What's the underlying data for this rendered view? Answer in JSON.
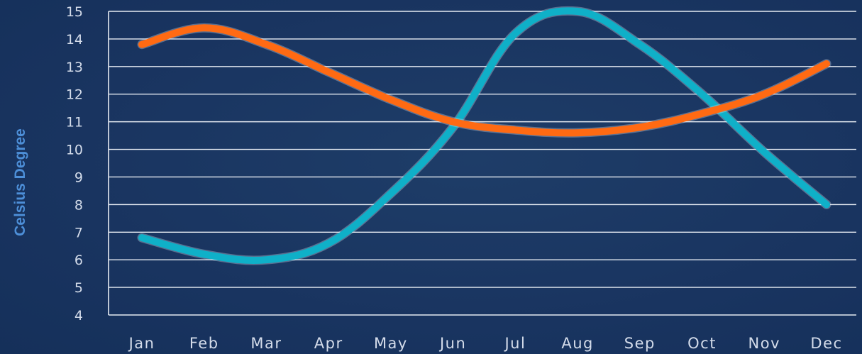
{
  "chart_data": {
    "type": "line",
    "ylabel": "Celsius Degree",
    "xlabel": "",
    "title": "",
    "categories": [
      "Jan",
      "Feb",
      "Mar",
      "Apr",
      "May",
      "Jun",
      "Jul",
      "Aug",
      "Sep",
      "Oct",
      "Nov",
      "Dec"
    ],
    "ylim": [
      4,
      15
    ],
    "yticks": [
      4,
      5,
      6,
      7,
      8,
      9,
      10,
      11,
      12,
      13,
      14,
      15
    ],
    "grid": true,
    "legend": "none",
    "series": [
      {
        "color": "#0fb0c8",
        "values": [
          6.8,
          6.2,
          6.0,
          6.6,
          8.4,
          10.8,
          14.2,
          15.0,
          13.8,
          12.0,
          9.9,
          8.0
        ]
      },
      {
        "color": "#ff6a13",
        "values": [
          13.8,
          14.4,
          13.8,
          12.8,
          11.8,
          11.0,
          10.7,
          10.6,
          10.8,
          11.3,
          12.0,
          13.1
        ]
      }
    ]
  }
}
